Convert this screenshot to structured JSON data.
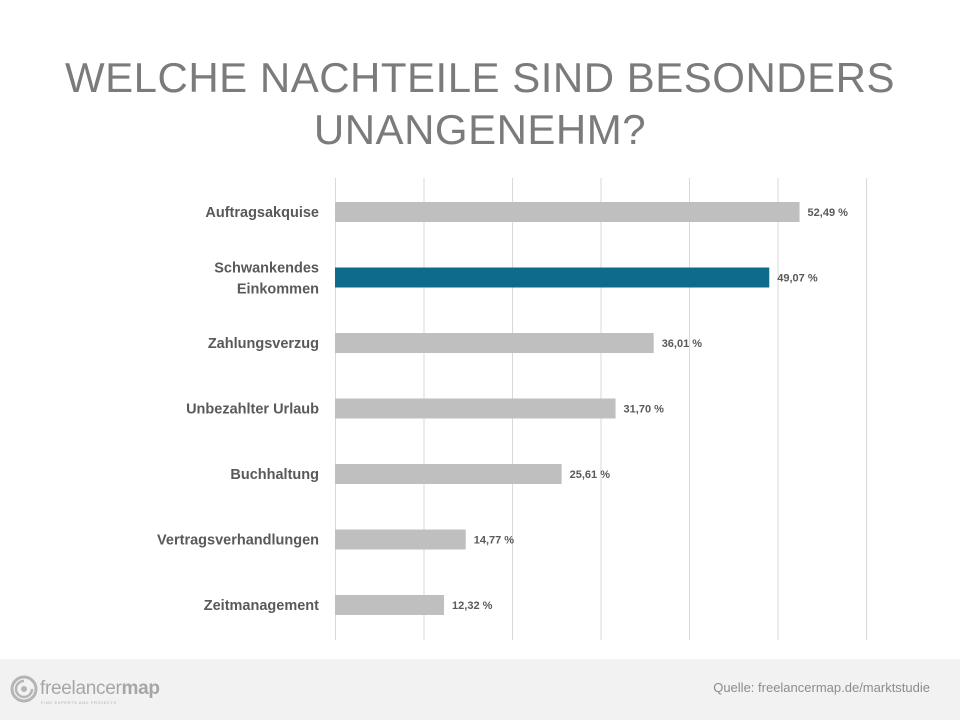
{
  "slide": {
    "title": "WELCHE NACHTEILE SIND BESONDERS UNANGENEHM?"
  },
  "chart_data": {
    "type": "bar",
    "orientation": "horizontal",
    "title": "WELCHE NACHTEILE SIND BESONDERS UNANGENEHM?",
    "categories": [
      "Auftragsakquise",
      "Schwankendes Einkommen",
      "Zahlungsverzug",
      "Unbezahlter Urlaub",
      "Buchhaltung",
      "Vertragsverhandlungen",
      "Zeitmanagement"
    ],
    "values": [
      52.49,
      49.07,
      36.01,
      31.7,
      25.61,
      14.77,
      12.32
    ],
    "data_labels": [
      "52,49 %",
      "49,07 %",
      "36,01 %",
      "31,70 %",
      "25,61 %",
      "14,77 %",
      "12,32 %"
    ],
    "highlight_index": 1,
    "bar_color": "#bfbfbf",
    "highlight_color": "#0e6c8b",
    "xlim": [
      0,
      60
    ],
    "grid": true,
    "xlabel": "",
    "ylabel": ""
  },
  "footer": {
    "logo_text_light": "freelancer",
    "logo_text_bold": "map",
    "logo_tagline": "FIND EXPERTS AND PROJECTS",
    "source": "Quelle: freelancermap.de/marktstudie"
  }
}
